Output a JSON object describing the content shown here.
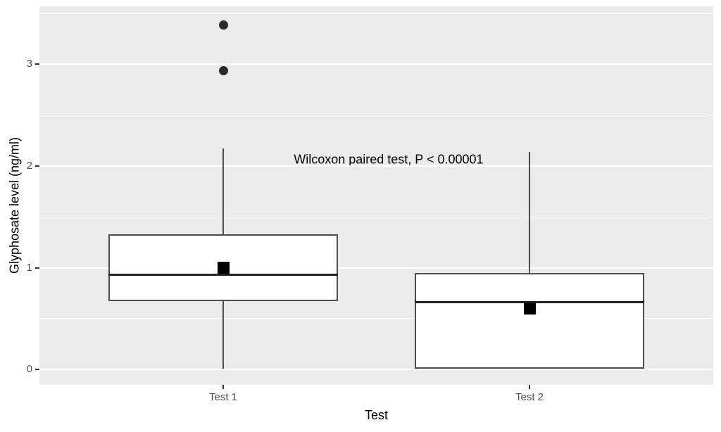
{
  "figure": {
    "background": "#ffffff",
    "panel_background": "#ebebeb",
    "gridline_color": "#ffffff"
  },
  "chart_data": {
    "type": "boxplot",
    "title": "",
    "xlabel": "Test",
    "ylabel": "Glyphosate level (ng/ml)",
    "categories": [
      "Test 1",
      "Test 2"
    ],
    "x_positions": [
      1,
      2
    ],
    "xlim": [
      0.4,
      2.6
    ],
    "ylim": [
      -0.15,
      3.57
    ],
    "y_ticks": [
      0,
      1,
      2,
      3
    ],
    "y_minor_ticks": [
      0.5,
      1.5,
      2.5,
      3.5
    ],
    "grid": "on",
    "legend": "none",
    "box_width": 0.75,
    "annotation": {
      "text": "Wilcoxon paired test, P < 0.00001",
      "x": 1.54,
      "y": 2.06
    },
    "series": [
      {
        "name": "Test 1",
        "whisker_low": 0.01,
        "q1": 0.67,
        "median": 0.93,
        "q3": 1.33,
        "whisker_high": 2.17,
        "mean": 1.0,
        "outliers": [
          2.94,
          3.39
        ]
      },
      {
        "name": "Test 2",
        "whisker_low": 0.01,
        "q1": 0.01,
        "median": 0.66,
        "q3": 0.95,
        "whisker_high": 2.14,
        "mean": 0.6,
        "outliers": []
      }
    ],
    "colors": {
      "box_fill": "#ffffff",
      "box_border": "#4d4d4d",
      "median_line": "#222222",
      "mean_marker": "#000000",
      "outlier_point": "#2b2b2b",
      "tick_label": "#4d4d4d",
      "axis_title": "#000000"
    }
  }
}
